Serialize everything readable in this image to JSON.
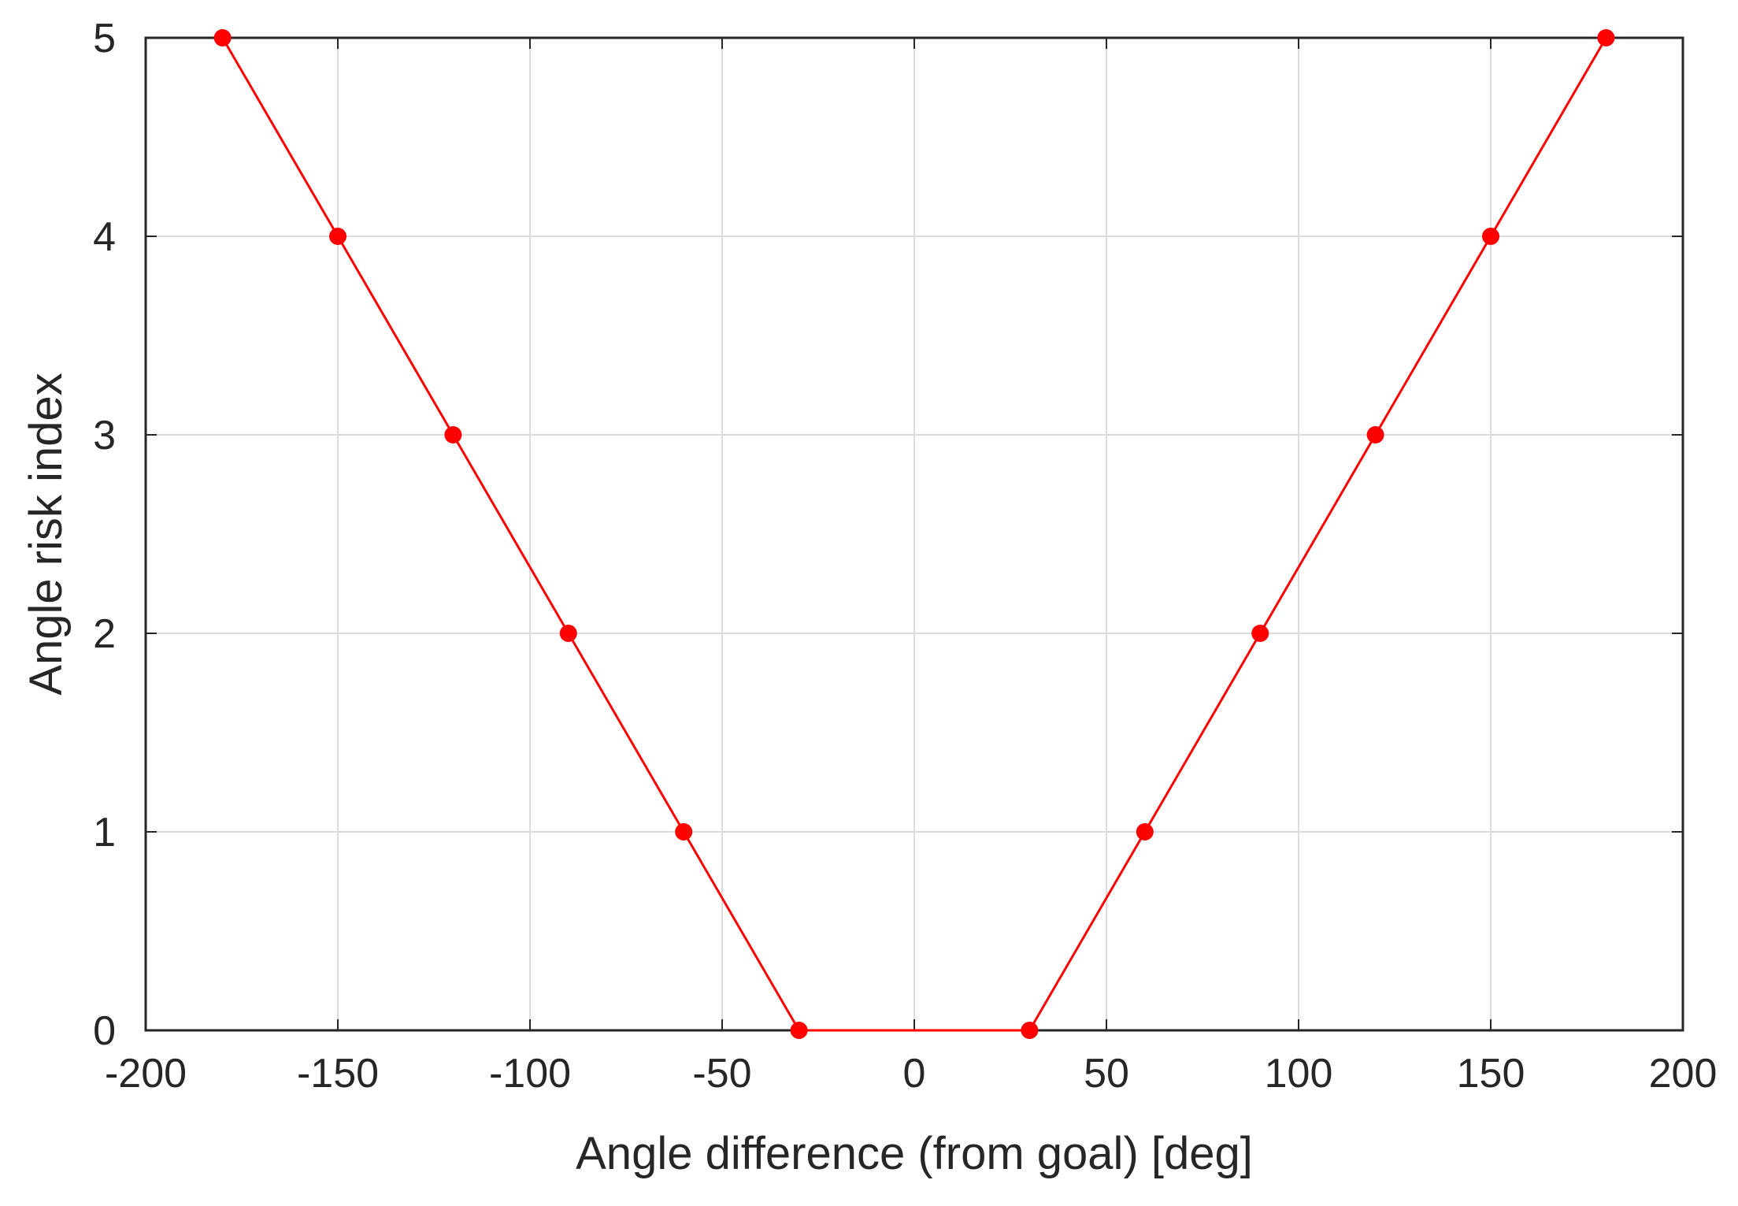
{
  "chart_data": {
    "type": "line",
    "title": "",
    "xlabel": "Angle difference (from goal) [deg]",
    "ylabel": "Angle risk index",
    "xlim": [
      -200,
      200
    ],
    "ylim": [
      0,
      5
    ],
    "xticks": [
      -200,
      -150,
      -100,
      -50,
      0,
      50,
      100,
      150,
      200
    ],
    "yticks": [
      0,
      1,
      2,
      3,
      4,
      5
    ],
    "xtick_labels": [
      "-200",
      "-150",
      "-100",
      "-50",
      "0",
      "50",
      "100",
      "150",
      "200"
    ],
    "ytick_labels": [
      "0",
      "1",
      "2",
      "3",
      "4",
      "5"
    ],
    "grid": true,
    "series": [
      {
        "color": "#ff0000",
        "marker": "circle",
        "x": [
          -180,
          -150,
          -120,
          -90,
          -60,
          -30,
          30,
          60,
          90,
          120,
          150,
          180
        ],
        "y": [
          5,
          4,
          3,
          2,
          1,
          0,
          0,
          1,
          2,
          3,
          4,
          5
        ]
      }
    ]
  }
}
